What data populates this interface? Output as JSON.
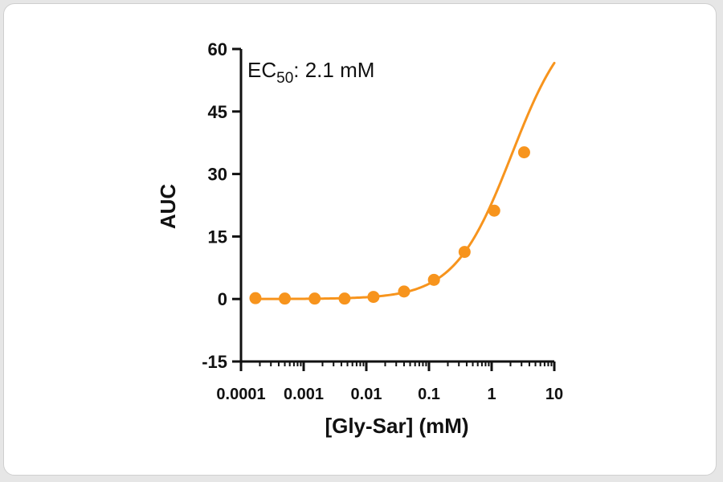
{
  "chart_data": {
    "type": "scatter",
    "xscale": "log",
    "xlabel": "[Gly-Sar] (mM)",
    "ylabel": "AUC",
    "xlim": [
      0.0001,
      10
    ],
    "ylim": [
      -15,
      60
    ],
    "xticks": [
      0.0001,
      0.001,
      0.01,
      0.1,
      1,
      10
    ],
    "xtick_labels": [
      "0.0001",
      "0.001",
      "0.01",
      "0.1",
      "1",
      "10"
    ],
    "yticks": [
      -15,
      0,
      15,
      30,
      45,
      60
    ],
    "ytick_labels": [
      "-15",
      "0",
      "15",
      "30",
      "45",
      "60"
    ],
    "annotation": {
      "prefix": "EC",
      "subscript": "50",
      "suffix": ": 2.1 mM"
    },
    "color": "#f7941d",
    "grid": false,
    "points": [
      {
        "x": 0.00017,
        "y": 0.2
      },
      {
        "x": 0.0005,
        "y": 0.1
      },
      {
        "x": 0.0015,
        "y": 0.1
      },
      {
        "x": 0.0045,
        "y": 0.1
      },
      {
        "x": 0.013,
        "y": 0.5
      },
      {
        "x": 0.04,
        "y": 1.8
      },
      {
        "x": 0.12,
        "y": 4.6
      },
      {
        "x": 0.37,
        "y": 11.3
      },
      {
        "x": 1.1,
        "y": 21.2
      },
      {
        "x": 3.3,
        "y": 35.2
      }
    ],
    "fit": {
      "model": "four-parameter-logistic",
      "bottom": 0,
      "top": 69.5,
      "ec50": 2.1,
      "hill": 0.95,
      "x_range": [
        0.00016,
        10
      ]
    }
  }
}
